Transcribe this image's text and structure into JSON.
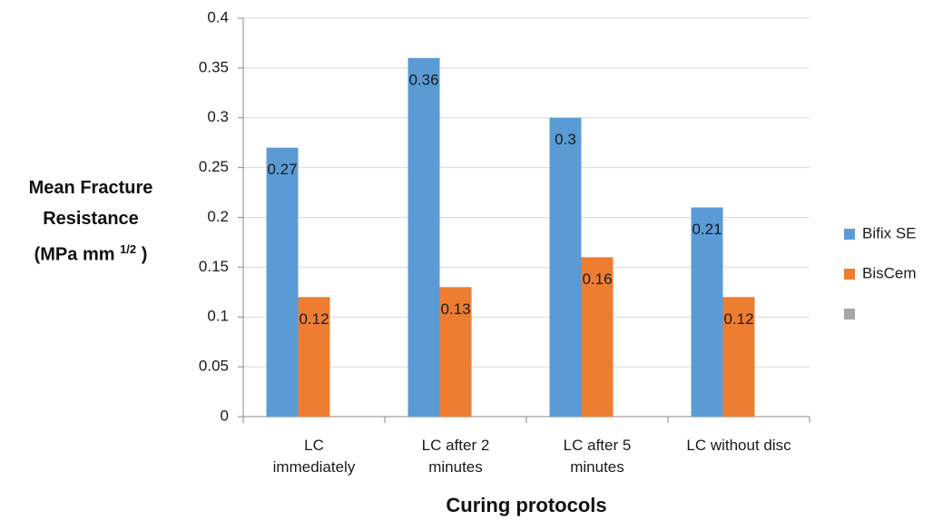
{
  "chart_data": {
    "type": "bar",
    "categories": [
      "LC immediately",
      "LC after 2 minutes",
      "LC after 5 minutes",
      "LC without disc"
    ],
    "series": [
      {
        "name": "Bifix SE",
        "color": "#5b9bd5",
        "values": [
          0.27,
          0.36,
          0.3,
          0.21
        ]
      },
      {
        "name": "BisCem",
        "color": "#ed7d31",
        "values": [
          0.12,
          0.13,
          0.16,
          0.12
        ]
      },
      {
        "color": "#a5a5a5",
        "values": [
          null,
          null,
          null,
          null
        ]
      }
    ],
    "ylim": [
      0,
      0.4
    ],
    "yticks": [
      0,
      0.05,
      0.1,
      0.15,
      0.2,
      0.25,
      0.3,
      0.35,
      0.4
    ],
    "grid": true,
    "xlabel": "Curing protocols",
    "ylabel": {
      "lines": [
        "Mean Fracture",
        "Resistance"
      ],
      "unit": "(MPa mm",
      "unit_exponent": "1/2",
      "unit_close": ")"
    },
    "legend": "right"
  }
}
